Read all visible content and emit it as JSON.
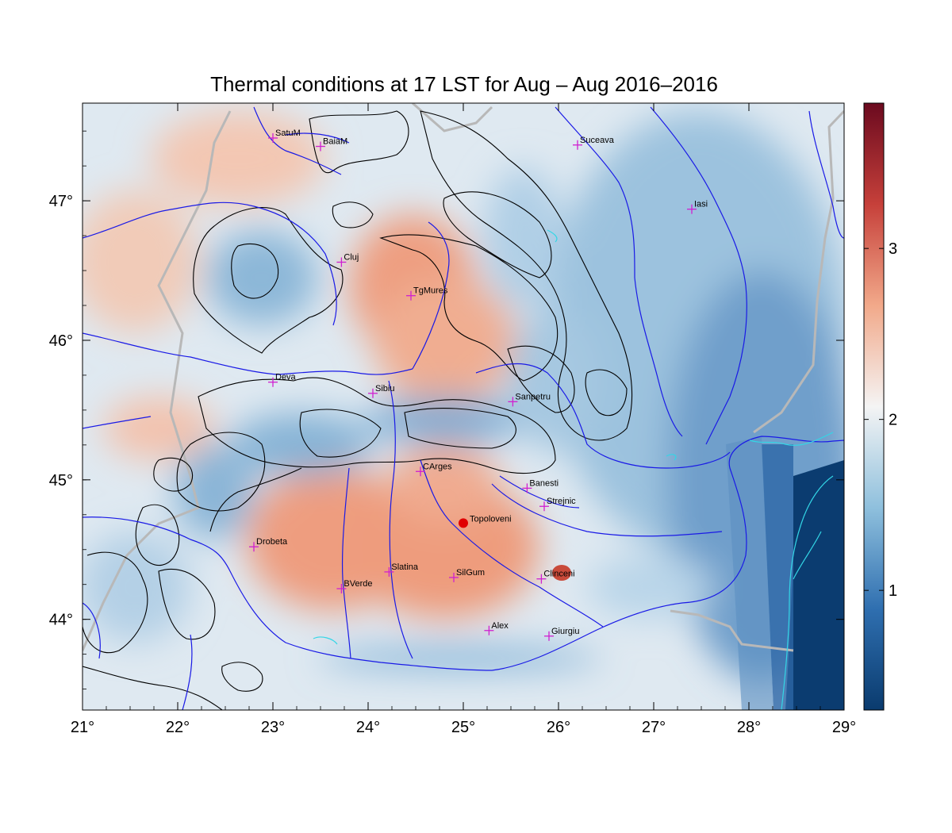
{
  "title": "Thermal conditions at 17 LST for Aug – Aug  2016–2016",
  "x_ticks": [
    {
      "value": 21,
      "label": "21°"
    },
    {
      "value": 22,
      "label": "22°"
    },
    {
      "value": 23,
      "label": "23°"
    },
    {
      "value": 24,
      "label": "24°"
    },
    {
      "value": 25,
      "label": "25°"
    },
    {
      "value": 26,
      "label": "26°"
    },
    {
      "value": 27,
      "label": "27°"
    },
    {
      "value": 28,
      "label": "28°"
    },
    {
      "value": 29,
      "label": "29°"
    }
  ],
  "y_ticks": [
    {
      "value": 44,
      "label": "44°"
    },
    {
      "value": 45,
      "label": "45°"
    },
    {
      "value": 46,
      "label": "46°"
    },
    {
      "value": 47,
      "label": "47°"
    }
  ],
  "colorbar": {
    "range": [
      0.3,
      3.85
    ],
    "ticks": [
      {
        "value": 1,
        "label": "1"
      },
      {
        "value": 2,
        "label": "2"
      },
      {
        "value": 3,
        "label": "3"
      }
    ],
    "colors": [
      "#0a3b6e",
      "#2f6fb0",
      "#8fc0dd",
      "#f4f4f4",
      "#f2a98a",
      "#c6403a",
      "#6b0a1f"
    ]
  },
  "extent": {
    "lon": [
      21,
      29
    ],
    "lat": [
      43.35,
      47.7
    ]
  },
  "cities": [
    {
      "name": "SatuM",
      "lon": 23.0,
      "lat": 47.45
    },
    {
      "name": "BaiaM",
      "lon": 23.5,
      "lat": 47.39
    },
    {
      "name": "Suceava",
      "lon": 26.2,
      "lat": 47.4
    },
    {
      "name": "Iasi",
      "lon": 27.4,
      "lat": 46.94
    },
    {
      "name": "Cluj",
      "lon": 23.72,
      "lat": 46.56
    },
    {
      "name": "TgMures",
      "lon": 24.45,
      "lat": 46.32
    },
    {
      "name": "Deva",
      "lon": 23.0,
      "lat": 45.7
    },
    {
      "name": "Sibiu",
      "lon": 24.05,
      "lat": 45.62
    },
    {
      "name": "Sanpetru",
      "lon": 25.52,
      "lat": 45.56
    },
    {
      "name": "CArges",
      "lon": 24.55,
      "lat": 45.06
    },
    {
      "name": "Banesti",
      "lon": 25.67,
      "lat": 44.94
    },
    {
      "name": "Strejnic",
      "lon": 25.85,
      "lat": 44.81
    },
    {
      "name": "Drobeta",
      "lon": 22.8,
      "lat": 44.52
    },
    {
      "name": "Slatina",
      "lon": 24.22,
      "lat": 44.34
    },
    {
      "name": "SilGum",
      "lon": 24.9,
      "lat": 44.3
    },
    {
      "name": "Clinceni",
      "lon": 25.82,
      "lat": 44.29
    },
    {
      "name": "BVerde",
      "lon": 23.72,
      "lat": 44.22
    },
    {
      "name": "Alex",
      "lon": 25.27,
      "lat": 43.92
    },
    {
      "name": "Giurgiu",
      "lon": 25.9,
      "lat": 43.88
    }
  ],
  "highlight": {
    "name": "Topoloveni",
    "lon": 25.0,
    "lat": 44.69,
    "color": "#e00000"
  },
  "marker_color": "#d020d0",
  "river_color": "#1a1ae6",
  "coast_color": "#33d6e6",
  "border_color": "#b0b0b0",
  "contour_color": "#000000"
}
